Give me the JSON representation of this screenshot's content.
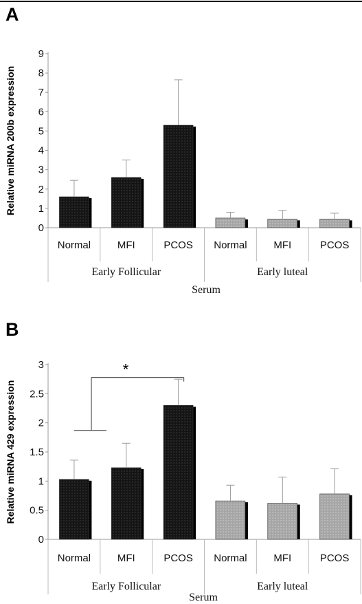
{
  "chart_data": [
    {
      "panel": "A",
      "type": "bar",
      "ylabel": "Relative miRNA 200b expression",
      "xlabel": "Serum",
      "ylim": [
        0,
        9
      ],
      "yticks": [
        "0",
        "1",
        "2",
        "3",
        "4",
        "5",
        "6",
        "7",
        "8",
        "9"
      ],
      "categories": [
        "Normal",
        "MFI",
        "PCOS",
        "Normal",
        "MFI",
        "PCOS"
      ],
      "groups": [
        {
          "label": "Early Follicular",
          "span": [
            0,
            2
          ]
        },
        {
          "label": "Early luteal",
          "span": [
            3,
            5
          ]
        }
      ],
      "values": [
        1.6,
        2.6,
        5.3,
        0.5,
        0.45,
        0.45
      ],
      "errors": [
        0.85,
        0.9,
        2.35,
        0.3,
        0.45,
        0.3
      ],
      "bar_colors": [
        "#1a1a1a",
        "#1a1a1a",
        "#1a1a1a",
        "#a8a8a8",
        "#a8a8a8",
        "#a8a8a8"
      ]
    },
    {
      "panel": "B",
      "type": "bar",
      "ylabel": "Relative miRNA 429 expression",
      "xlabel": "Serum",
      "ylim": [
        0,
        3
      ],
      "yticks": [
        "0",
        "0.5",
        "1",
        "1.5",
        "2",
        "2.5",
        "3"
      ],
      "categories": [
        "Normal",
        "MFI",
        "PCOS",
        "Normal",
        "MFI",
        "PCOS"
      ],
      "groups": [
        {
          "label": "Early Follicular",
          "span": [
            0,
            2
          ]
        },
        {
          "label": "Early luteal",
          "span": [
            3,
            5
          ]
        }
      ],
      "values": [
        1.03,
        1.23,
        2.3,
        0.66,
        0.62,
        0.78
      ],
      "errors": [
        0.33,
        0.42,
        0.45,
        0.27,
        0.45,
        0.43
      ],
      "bar_colors": [
        "#1a1a1a",
        "#1a1a1a",
        "#1a1a1a",
        "#a8a8a8",
        "#a8a8a8",
        "#a8a8a8"
      ],
      "significance": {
        "label": "*",
        "bracket_y": 2.78,
        "from_group": [
          0,
          1
        ],
        "to_bar": 2
      }
    }
  ]
}
